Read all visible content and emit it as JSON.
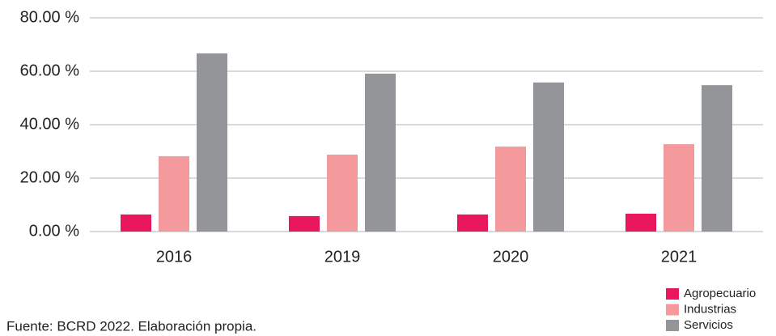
{
  "chart_data": {
    "type": "bar",
    "categories": [
      "2016",
      "2019",
      "2020",
      "2021"
    ],
    "series": [
      {
        "name": "Agropecuario",
        "color": "#e8175d",
        "values": [
          6.4,
          5.8,
          6.4,
          6.7
        ]
      },
      {
        "name": "Industrias",
        "color": "#f4999c",
        "values": [
          28.2,
          28.8,
          31.8,
          32.7
        ]
      },
      {
        "name": "Servicios",
        "color": "#939598",
        "values": [
          66.7,
          59.1,
          55.8,
          54.8
        ]
      }
    ],
    "ylim": [
      0,
      80
    ],
    "yticks": [
      {
        "value": 0,
        "label": "0.00 %"
      },
      {
        "value": 20,
        "label": "20.00 %"
      },
      {
        "value": 40,
        "label": "40.00 %"
      },
      {
        "value": 60,
        "label": "60.00 %"
      },
      {
        "value": 80,
        "label": "80.00 %"
      }
    ],
    "grid": true,
    "legend": "bottom-right",
    "source": "Fuente: BCRD 2022. Elaboración propia."
  }
}
